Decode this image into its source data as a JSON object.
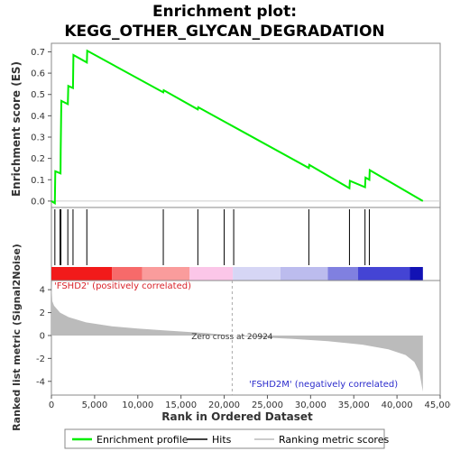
{
  "chart_data": {
    "type": "line",
    "title_lines": [
      "Enrichment plot:",
      "KEGG_OTHER_GLYCAN_DEGRADATION"
    ],
    "es_panel": {
      "ylabel": "Enrichment score (ES)",
      "ylim": [
        -0.03,
        0.74
      ],
      "yticks": [
        0.0,
        0.1,
        0.2,
        0.3,
        0.4,
        0.5,
        0.6,
        0.7
      ],
      "ytick_labels": [
        "0.0",
        "0.1",
        "0.2",
        "0.3",
        "0.4",
        "0.5",
        "0.6",
        "0.7"
      ],
      "color": "#00ee00",
      "points": [
        [
          0,
          0.0
        ],
        [
          400,
          -0.01
        ],
        [
          450,
          0.14
        ],
        [
          1050,
          0.13
        ],
        [
          1080,
          0.24
        ],
        [
          1150,
          0.47
        ],
        [
          1900,
          0.455
        ],
        [
          1950,
          0.54
        ],
        [
          2500,
          0.53
        ],
        [
          2550,
          0.685
        ],
        [
          4100,
          0.65
        ],
        [
          4150,
          0.705
        ],
        [
          12950,
          0.51
        ],
        [
          13000,
          0.52
        ],
        [
          16950,
          0.43
        ],
        [
          17000,
          0.44
        ],
        [
          29800,
          0.155
        ],
        [
          29850,
          0.17
        ],
        [
          34500,
          0.06
        ],
        [
          34550,
          0.095
        ],
        [
          36300,
          0.065
        ],
        [
          36350,
          0.11
        ],
        [
          36800,
          0.1
        ],
        [
          36850,
          0.145
        ],
        [
          43000,
          0.0
        ]
      ]
    },
    "hits": [
      400,
      1000,
      1100,
      1900,
      2500,
      4100,
      12950,
      16950,
      20000,
      21100,
      29800,
      34500,
      36300,
      36800
    ],
    "ranked_panel": {
      "ylabel": "Ranked list metric (Signal2Noise)",
      "ylim": [
        -5.2,
        4.8
      ],
      "yticks": [
        -4,
        -2,
        0,
        2,
        4
      ],
      "ytick_labels": [
        "-4",
        "-2",
        "0",
        "2",
        "4"
      ],
      "curve": [
        [
          0,
          4.5
        ],
        [
          100,
          3.0
        ],
        [
          300,
          2.6
        ],
        [
          1000,
          2.0
        ],
        [
          2000,
          1.6
        ],
        [
          4000,
          1.15
        ],
        [
          7000,
          0.8
        ],
        [
          10000,
          0.6
        ],
        [
          13000,
          0.45
        ],
        [
          16000,
          0.3
        ],
        [
          18000,
          0.2
        ],
        [
          20924,
          0.0
        ],
        [
          24000,
          -0.15
        ],
        [
          28000,
          -0.3
        ],
        [
          32000,
          -0.5
        ],
        [
          36000,
          -0.8
        ],
        [
          39000,
          -1.2
        ],
        [
          41000,
          -1.7
        ],
        [
          42000,
          -2.3
        ],
        [
          42600,
          -3.2
        ],
        [
          43000,
          -4.9
        ]
      ],
      "zero_cross_label": "Zero cross at 20924",
      "zero_cross": 20924,
      "pos_label": "'FSHD2' (positively correlated)",
      "neg_label": "'FSHD2M' (negatively correlated)"
    },
    "x": {
      "xlabel": "Rank in Ordered Dataset",
      "xlim": [
        0,
        45000
      ],
      "xticks": [
        0,
        5000,
        10000,
        15000,
        20000,
        25000,
        30000,
        35000,
        40000,
        45000
      ],
      "xtick_labels": [
        "0",
        "5,000",
        "10,000",
        "15,000",
        "20,000",
        "25,000",
        "30,000",
        "35,000",
        "40,000",
        "45,000"
      ],
      "dataset_end": 43000
    },
    "color_bar": [
      {
        "start": 0,
        "end": 7000,
        "color": "#f21a1a"
      },
      {
        "start": 7000,
        "end": 10500,
        "color": "#f76a6a"
      },
      {
        "start": 10500,
        "end": 16000,
        "color": "#fa9c9c"
      },
      {
        "start": 16000,
        "end": 21000,
        "color": "#fbc6e8"
      },
      {
        "start": 21000,
        "end": 26500,
        "color": "#d6d6f5"
      },
      {
        "start": 26500,
        "end": 32000,
        "color": "#bcbcee"
      },
      {
        "start": 32000,
        "end": 35500,
        "color": "#8080e0"
      },
      {
        "start": 35500,
        "end": 41500,
        "color": "#4444d4"
      },
      {
        "start": 41500,
        "end": 43000,
        "color": "#1212b4"
      }
    ],
    "legend": {
      "items": [
        {
          "label": "Enrichment profile",
          "color": "#00ee00"
        },
        {
          "label": "Hits",
          "color": "#000000"
        },
        {
          "label": "Ranking metric scores",
          "color": "#bbbbbb"
        }
      ]
    }
  }
}
